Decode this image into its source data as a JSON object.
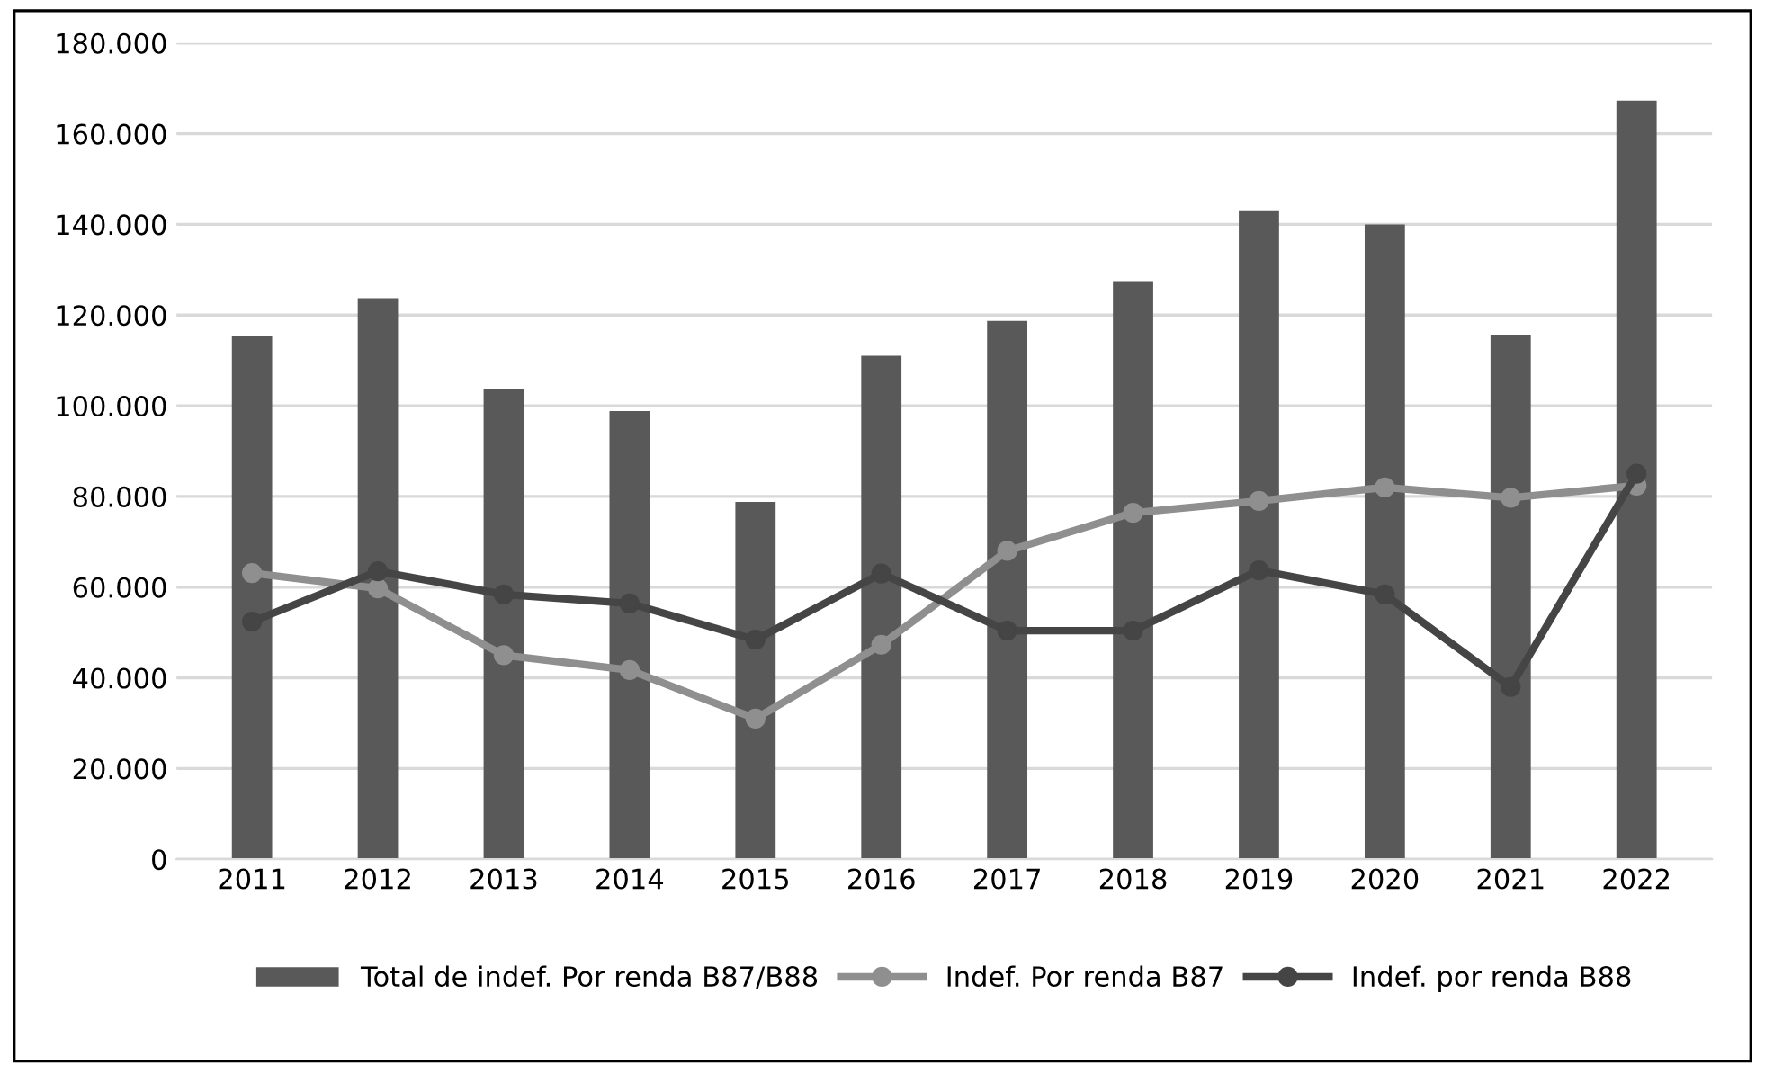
{
  "chart_data": {
    "type": "bar",
    "categories": [
      "2011",
      "2012",
      "2013",
      "2014",
      "2015",
      "2016",
      "2017",
      "2018",
      "2019",
      "2020",
      "2021",
      "2022"
    ],
    "series": [
      {
        "name": "Total de indef. Por renda B87/B88",
        "color": "#595959",
        "values": [
          115300,
          123700,
          103600,
          98800,
          78800,
          111000,
          118700,
          127500,
          142900,
          140000,
          115700,
          167300
        ]
      },
      {
        "name": "Indef. Por renda B87",
        "type": "line",
        "color": "#8f8f8f",
        "values": [
          63100,
          59700,
          45000,
          41700,
          31000,
          47300,
          68000,
          76400,
          79000,
          82000,
          79700,
          82400
        ]
      },
      {
        "name": "Indef. por renda B88",
        "type": "line",
        "color": "#454545",
        "values": [
          52400,
          63500,
          58400,
          56400,
          48400,
          63000,
          50400,
          50400,
          63700,
          58400,
          38000,
          85000
        ]
      }
    ],
    "ylim": [
      0,
      180000
    ],
    "yticks": [
      {
        "value": 0,
        "label": "0"
      },
      {
        "value": 20000,
        "label": "20.000"
      },
      {
        "value": 40000,
        "label": "40.000"
      },
      {
        "value": 60000,
        "label": "60.000"
      },
      {
        "value": 80000,
        "label": "80.000"
      },
      {
        "value": 100000,
        "label": "100.000"
      },
      {
        "value": 120000,
        "label": "120.000"
      },
      {
        "value": 140000,
        "label": "140.000"
      },
      {
        "value": 160000,
        "label": "160.000"
      },
      {
        "value": 180000,
        "label": "180.000"
      }
    ],
    "grid": "y",
    "legend": "bottom",
    "marker": "circle",
    "line_style": "solid"
  }
}
